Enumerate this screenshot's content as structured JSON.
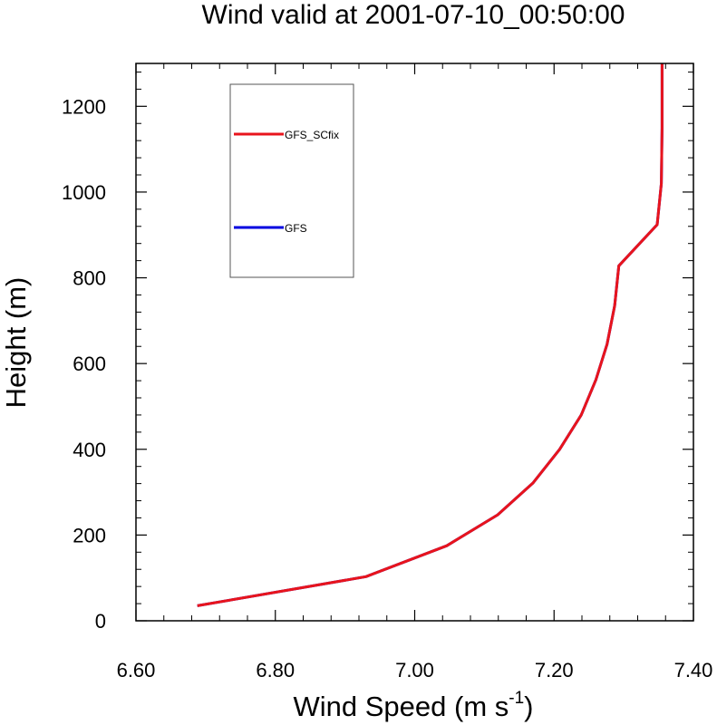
{
  "chart_data": {
    "type": "line",
    "title": "Wind valid at 2001-07-10_00:50:00",
    "xlabel_main": "Wind Speed (m s",
    "xlabel_sup": "-1",
    "xlabel_close": ")",
    "ylabel": "Height (m)",
    "xlim": [
      6.6,
      7.4
    ],
    "ylim": [
      0,
      1300
    ],
    "x_ticks": [
      6.6,
      6.8,
      7.0,
      7.2,
      7.4
    ],
    "x_tick_labels": [
      "6.60",
      "6.80",
      "7.00",
      "7.20",
      "7.40"
    ],
    "y_ticks": [
      0,
      200,
      400,
      600,
      800,
      1000,
      1200
    ],
    "y_tick_labels": [
      "0",
      "200",
      "400",
      "600",
      "800",
      "1000",
      "1200"
    ],
    "x_minor_step": 0.04,
    "y_minor_step": 40,
    "legend_position": "top-left",
    "series": [
      {
        "name": "GFS_SCfix",
        "color": "#e8141c",
        "x": [
          6.688,
          6.93,
          7.046,
          7.119,
          7.17,
          7.208,
          7.239,
          7.26,
          7.276,
          7.287,
          7.293,
          7.348,
          7.354,
          7.355,
          7.355
        ],
        "y": [
          35,
          103,
          175,
          247,
          322,
          400,
          480,
          562,
          645,
          735,
          828,
          924,
          1020,
          1150,
          1300
        ]
      },
      {
        "name": "GFS",
        "color": "#0000e0",
        "x": [
          6.688,
          6.93,
          7.046,
          7.119,
          7.17,
          7.208,
          7.239,
          7.26,
          7.276,
          7.287,
          7.293,
          7.348,
          7.354,
          7.355,
          7.355
        ],
        "y": [
          35,
          103,
          175,
          247,
          322,
          400,
          480,
          562,
          645,
          735,
          828,
          924,
          1020,
          1150,
          1300
        ]
      }
    ]
  }
}
